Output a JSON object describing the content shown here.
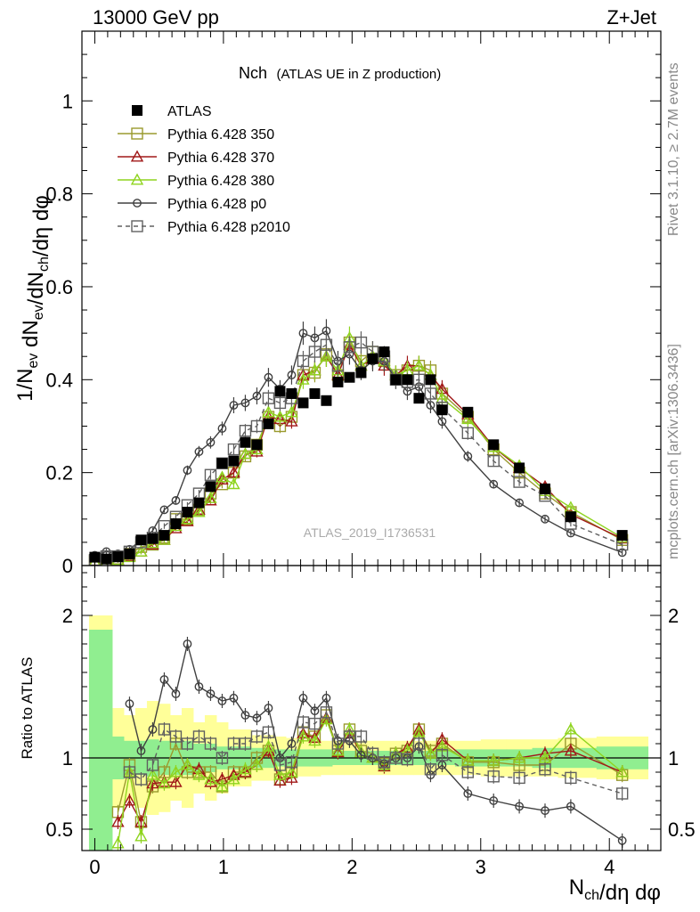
{
  "header": {
    "left": "13000 GeV pp",
    "right": "Z+Jet"
  },
  "side": {
    "rivet": "Rivet 3.1.10, ≥ 2.7M events",
    "mcplots": "mcplots.cern.ch [arXiv:1306.3436]"
  },
  "watermark": "ATLAS_2019_I1736531",
  "chart_data": [
    {
      "type": "scatter",
      "title": "Nch",
      "subtitle": "(ATLAS UE in Z production)",
      "ylabel": "1/N_ev dN_ev/dN_ch/dη dφ",
      "xlim": [
        -0.1,
        4.4
      ],
      "ylim": [
        0,
        1.15
      ],
      "yticks": [
        0,
        0.2,
        0.4,
        0.6,
        0.8,
        1
      ],
      "ytick_labels": [
        "0",
        "0.2",
        "0.4",
        "0.6",
        "0.8",
        "1"
      ],
      "legend_position": "top-left",
      "series": [
        {
          "name": "ATLAS",
          "color": "#000000",
          "marker": "square-filled",
          "x": [
            0.0,
            0.09,
            0.18,
            0.27,
            0.36,
            0.45,
            0.54,
            0.63,
            0.72,
            0.81,
            0.9,
            0.99,
            1.08,
            1.17,
            1.26,
            1.35,
            1.44,
            1.53,
            1.62,
            1.71,
            1.8,
            1.89,
            1.98,
            2.07,
            2.16,
            2.25,
            2.34,
            2.43,
            2.52,
            2.61,
            2.7,
            2.9,
            3.1,
            3.3,
            3.5,
            3.7,
            4.1
          ],
          "y": [
            0.018,
            0.014,
            0.019,
            0.025,
            0.055,
            0.058,
            0.065,
            0.09,
            0.115,
            0.135,
            0.17,
            0.22,
            0.225,
            0.265,
            0.26,
            0.305,
            0.375,
            0.37,
            0.35,
            0.37,
            0.355,
            0.395,
            0.405,
            0.415,
            0.445,
            0.46,
            0.4,
            0.4,
            0.36,
            0.4,
            0.335,
            0.33,
            0.26,
            0.21,
            0.165,
            0.105,
            0.065
          ]
        },
        {
          "name": "Pythia 6.428 350",
          "color": "#9a9a2e",
          "marker": "square-open",
          "linestyle": "solid",
          "x": [
            0.0,
            0.09,
            0.18,
            0.27,
            0.36,
            0.45,
            0.54,
            0.63,
            0.72,
            0.81,
            0.9,
            0.99,
            1.08,
            1.17,
            1.26,
            1.35,
            1.44,
            1.53,
            1.62,
            1.71,
            1.8,
            1.89,
            1.98,
            2.07,
            2.16,
            2.25,
            2.34,
            2.43,
            2.52,
            2.61,
            2.7,
            2.9,
            3.1,
            3.3,
            3.5,
            3.7,
            4.1
          ],
          "y": [
            0.01,
            0.01,
            0.015,
            0.025,
            0.04,
            0.045,
            0.06,
            0.1,
            0.1,
            0.12,
            0.155,
            0.175,
            0.2,
            0.235,
            0.26,
            0.32,
            0.3,
            0.32,
            0.41,
            0.415,
            0.455,
            0.41,
            0.48,
            0.44,
            0.46,
            0.44,
            0.41,
            0.42,
            0.43,
            0.42,
            0.37,
            0.32,
            0.25,
            0.2,
            0.155,
            0.115,
            0.055
          ]
        },
        {
          "name": "Pythia 6.428 370",
          "color": "#a01818",
          "marker": "triangle-open",
          "linestyle": "solid",
          "x": [
            0.0,
            0.09,
            0.18,
            0.27,
            0.36,
            0.45,
            0.54,
            0.63,
            0.72,
            0.81,
            0.9,
            0.99,
            1.08,
            1.17,
            1.26,
            1.35,
            1.44,
            1.53,
            1.62,
            1.71,
            1.8,
            1.89,
            1.98,
            2.07,
            2.16,
            2.25,
            2.34,
            2.43,
            2.52,
            2.61,
            2.7,
            2.9,
            3.1,
            3.3,
            3.5,
            3.7,
            4.1
          ],
          "y": [
            0.01,
            0.008,
            0.012,
            0.02,
            0.03,
            0.045,
            0.055,
            0.08,
            0.095,
            0.12,
            0.14,
            0.185,
            0.2,
            0.24,
            0.245,
            0.32,
            0.315,
            0.31,
            0.41,
            0.42,
            0.45,
            0.41,
            0.475,
            0.43,
            0.445,
            0.43,
            0.41,
            0.43,
            0.43,
            0.41,
            0.38,
            0.325,
            0.255,
            0.21,
            0.17,
            0.11,
            0.058
          ]
        },
        {
          "name": "Pythia 6.428 380",
          "color": "#8fd41f",
          "marker": "triangle-open",
          "linestyle": "solid",
          "x": [
            0.0,
            0.09,
            0.18,
            0.27,
            0.36,
            0.45,
            0.54,
            0.63,
            0.72,
            0.81,
            0.9,
            0.99,
            1.08,
            1.17,
            1.26,
            1.35,
            1.44,
            1.53,
            1.62,
            1.71,
            1.8,
            1.89,
            1.98,
            2.07,
            2.16,
            2.25,
            2.34,
            2.43,
            2.52,
            2.61,
            2.7,
            2.9,
            3.1,
            3.3,
            3.5,
            3.7,
            4.1
          ],
          "y": [
            0.008,
            0.008,
            0.012,
            0.018,
            0.03,
            0.048,
            0.055,
            0.085,
            0.1,
            0.115,
            0.145,
            0.19,
            0.175,
            0.24,
            0.25,
            0.33,
            0.32,
            0.33,
            0.4,
            0.42,
            0.45,
            0.42,
            0.49,
            0.43,
            0.45,
            0.44,
            0.41,
            0.42,
            0.43,
            0.41,
            0.36,
            0.315,
            0.255,
            0.215,
            0.16,
            0.125,
            0.06
          ]
        },
        {
          "name": "Pythia 6.428 p0",
          "color": "#404040",
          "marker": "circle-open",
          "linestyle": "solid",
          "x": [
            0.0,
            0.09,
            0.18,
            0.27,
            0.36,
            0.45,
            0.54,
            0.63,
            0.72,
            0.81,
            0.9,
            0.99,
            1.08,
            1.17,
            1.26,
            1.35,
            1.44,
            1.53,
            1.62,
            1.71,
            1.8,
            1.89,
            1.98,
            2.07,
            2.16,
            2.25,
            2.34,
            2.43,
            2.52,
            2.61,
            2.7,
            2.9,
            3.1,
            3.3,
            3.5,
            3.7,
            4.1
          ],
          "y": [
            0.022,
            0.03,
            0.025,
            0.035,
            0.055,
            0.075,
            0.12,
            0.14,
            0.205,
            0.245,
            0.265,
            0.295,
            0.345,
            0.35,
            0.365,
            0.405,
            0.38,
            0.41,
            0.5,
            0.49,
            0.505,
            0.44,
            0.455,
            0.42,
            0.44,
            0.44,
            0.4,
            0.375,
            0.385,
            0.345,
            0.31,
            0.235,
            0.175,
            0.135,
            0.1,
            0.07,
            0.028
          ]
        },
        {
          "name": "Pythia 6.428 p2010",
          "color": "#606060",
          "marker": "square-open",
          "linestyle": "dashed",
          "x": [
            0.0,
            0.09,
            0.18,
            0.27,
            0.36,
            0.45,
            0.54,
            0.63,
            0.72,
            0.81,
            0.9,
            0.99,
            1.08,
            1.17,
            1.26,
            1.35,
            1.44,
            1.53,
            1.62,
            1.71,
            1.8,
            1.89,
            1.98,
            2.07,
            2.16,
            2.25,
            2.34,
            2.43,
            2.52,
            2.61,
            2.7,
            2.9,
            3.1,
            3.3,
            3.5,
            3.7,
            4.1
          ],
          "y": [
            0.012,
            0.02,
            0.02,
            0.03,
            0.05,
            0.06,
            0.085,
            0.105,
            0.13,
            0.155,
            0.195,
            0.22,
            0.25,
            0.29,
            0.3,
            0.36,
            0.35,
            0.36,
            0.44,
            0.46,
            0.475,
            0.43,
            0.47,
            0.48,
            0.46,
            0.45,
            0.4,
            0.395,
            0.4,
            0.37,
            0.34,
            0.285,
            0.225,
            0.18,
            0.15,
            0.09,
            0.045
          ]
        }
      ]
    },
    {
      "type": "scatter",
      "ylabel": "Ratio to ATLAS",
      "xlabel": "N_ch/dη dφ",
      "xlim": [
        -0.1,
        4.4
      ],
      "ylim": [
        0.35,
        2.35
      ],
      "yticks": [
        0.5,
        1,
        2
      ],
      "ytick_labels": [
        "0.5",
        "1",
        "2"
      ],
      "xticks": [
        0,
        1,
        2,
        3,
        4
      ],
      "xtick_labels": [
        "0",
        "1",
        "2",
        "3",
        "4"
      ],
      "reference_line": 1,
      "bands": {
        "x": [
          0.0,
          0.09,
          0.18,
          0.27,
          0.36,
          0.45,
          0.54,
          0.63,
          0.72,
          0.81,
          0.9,
          0.99,
          1.08,
          1.17,
          1.26,
          1.35,
          1.44,
          1.53,
          1.62,
          1.71,
          1.8,
          1.89,
          1.98,
          2.07,
          2.16,
          2.25,
          2.34,
          2.43,
          2.52,
          2.61,
          2.7,
          2.9,
          3.1,
          3.3,
          3.5,
          3.7,
          4.1
        ],
        "inner_halfwidth": [
          0.9,
          0.9,
          0.15,
          0.12,
          0.12,
          0.13,
          0.12,
          0.12,
          0.12,
          0.1,
          0.1,
          0.08,
          0.08,
          0.08,
          0.07,
          0.07,
          0.06,
          0.06,
          0.06,
          0.06,
          0.06,
          0.05,
          0.05,
          0.05,
          0.05,
          0.05,
          0.05,
          0.05,
          0.05,
          0.05,
          0.05,
          0.06,
          0.06,
          0.06,
          0.07,
          0.07,
          0.08
        ],
        "outer_halfwidth": [
          1.0,
          1.0,
          0.35,
          0.3,
          0.35,
          0.4,
          0.38,
          0.3,
          0.35,
          0.25,
          0.3,
          0.25,
          0.2,
          0.2,
          0.16,
          0.16,
          0.15,
          0.14,
          0.13,
          0.13,
          0.12,
          0.12,
          0.12,
          0.12,
          0.12,
          0.12,
          0.12,
          0.12,
          0.12,
          0.12,
          0.12,
          0.12,
          0.13,
          0.13,
          0.13,
          0.14,
          0.15
        ],
        "inner_color": "#90ee90",
        "outer_color": "#ffff99"
      },
      "series": [
        {
          "name": "Pythia 6.428 350",
          "color": "#9a9a2e",
          "marker": "square-open",
          "linestyle": "solid",
          "x": [
            0.18,
            0.27,
            0.36,
            0.45,
            0.54,
            0.63,
            0.72,
            0.81,
            0.9,
            0.99,
            1.08,
            1.17,
            1.26,
            1.35,
            1.44,
            1.53,
            1.62,
            1.71,
            1.8,
            1.89,
            1.98,
            2.07,
            2.16,
            2.25,
            2.34,
            2.43,
            2.52,
            2.61,
            2.7,
            2.9,
            3.1,
            3.3,
            3.5,
            3.7,
            4.1
          ],
          "y": [
            0.62,
            0.95,
            0.55,
            0.8,
            0.9,
            1.1,
            0.9,
            0.9,
            0.9,
            0.8,
            0.9,
            0.9,
            1.0,
            1.05,
            0.85,
            0.9,
            1.18,
            1.15,
            1.3,
            1.05,
            1.2,
            1.05,
            1.03,
            0.96,
            1.03,
            1.05,
            1.2,
            1.05,
            1.1,
            0.97,
            0.97,
            0.95,
            0.95,
            1.1,
            0.88
          ]
        },
        {
          "name": "Pythia 6.428 370",
          "color": "#a01818",
          "marker": "triangle-open",
          "linestyle": "solid",
          "x": [
            0.18,
            0.27,
            0.36,
            0.45,
            0.54,
            0.63,
            0.72,
            0.81,
            0.9,
            0.99,
            1.08,
            1.17,
            1.26,
            1.35,
            1.44,
            1.53,
            1.62,
            1.71,
            1.8,
            1.89,
            1.98,
            2.07,
            2.16,
            2.25,
            2.34,
            2.43,
            2.52,
            2.61,
            2.7,
            2.9,
            3.1,
            3.3,
            3.5,
            3.7,
            4.1
          ],
          "y": [
            0.55,
            0.7,
            0.55,
            0.82,
            0.83,
            0.83,
            0.95,
            0.92,
            0.83,
            0.85,
            0.88,
            0.9,
            0.95,
            1.05,
            0.84,
            0.86,
            1.17,
            1.14,
            1.28,
            1.04,
            1.17,
            1.04,
            1.0,
            0.94,
            1.03,
            1.07,
            1.2,
            1.03,
            1.13,
            0.98,
            0.98,
            1.0,
            1.03,
            1.05,
            0.9
          ]
        },
        {
          "name": "Pythia 6.428 380",
          "color": "#8fd41f",
          "marker": "triangle-open",
          "linestyle": "solid",
          "x": [
            0.18,
            0.27,
            0.36,
            0.45,
            0.54,
            0.63,
            0.72,
            0.81,
            0.9,
            0.99,
            1.08,
            1.17,
            1.26,
            1.35,
            1.44,
            1.53,
            1.62,
            1.71,
            1.8,
            1.89,
            1.98,
            2.07,
            2.16,
            2.25,
            2.34,
            2.43,
            2.52,
            2.61,
            2.7,
            2.9,
            3.1,
            3.3,
            3.5,
            3.7,
            4.1
          ],
          "y": [
            0.4,
            0.9,
            0.45,
            0.88,
            0.82,
            0.9,
            0.95,
            0.88,
            0.85,
            0.8,
            0.85,
            0.92,
            0.95,
            1.08,
            0.88,
            0.9,
            1.15,
            1.12,
            1.27,
            1.05,
            1.2,
            1.04,
            1.0,
            0.95,
            1.03,
            1.05,
            1.18,
            1.03,
            1.08,
            0.98,
            0.98,
            1.0,
            1.0,
            1.2,
            0.9
          ]
        },
        {
          "name": "Pythia 6.428 p0",
          "color": "#404040",
          "marker": "circle-open",
          "linestyle": "solid",
          "x": [
            0.27,
            0.36,
            0.45,
            0.54,
            0.63,
            0.72,
            0.81,
            0.9,
            0.99,
            1.08,
            1.17,
            1.26,
            1.35,
            1.44,
            1.53,
            1.62,
            1.71,
            1.8,
            1.89,
            1.98,
            2.07,
            2.16,
            2.25,
            2.34,
            2.43,
            2.52,
            2.61,
            2.7,
            2.9,
            3.1,
            3.3,
            3.5,
            3.7,
            4.1
          ],
          "y": [
            1.38,
            1.05,
            1.2,
            1.55,
            1.45,
            1.8,
            1.5,
            1.45,
            1.4,
            1.42,
            1.3,
            1.28,
            1.35,
            1.0,
            1.1,
            1.42,
            1.33,
            1.42,
            1.12,
            1.12,
            1.02,
            1.0,
            0.96,
            1.0,
            1.0,
            1.08,
            0.88,
            0.95,
            0.75,
            0.7,
            0.66,
            0.63,
            0.66,
            0.42
          ]
        },
        {
          "name": "Pythia 6.428 p2010",
          "color": "#606060",
          "marker": "square-open",
          "linestyle": "dashed",
          "x": [
            0.27,
            0.36,
            0.45,
            0.54,
            0.63,
            0.72,
            0.81,
            0.9,
            0.99,
            1.08,
            1.17,
            1.26,
            1.35,
            1.44,
            1.53,
            1.62,
            1.71,
            1.8,
            1.89,
            1.98,
            2.07,
            2.16,
            2.25,
            2.34,
            2.43,
            2.52,
            2.61,
            2.7,
            2.9,
            3.1,
            3.3,
            3.5,
            3.7,
            4.1
          ],
          "y": [
            0.9,
            0.85,
            0.95,
            1.2,
            1.15,
            1.1,
            1.15,
            1.1,
            1.0,
            1.1,
            1.1,
            1.15,
            1.18,
            0.95,
            0.97,
            1.25,
            1.24,
            1.32,
            1.1,
            1.15,
            1.15,
            1.03,
            0.97,
            1.0,
            0.99,
            1.1,
            0.92,
            1.02,
            0.9,
            0.87,
            0.86,
            0.92,
            0.86,
            0.75
          ]
        }
      ]
    }
  ]
}
